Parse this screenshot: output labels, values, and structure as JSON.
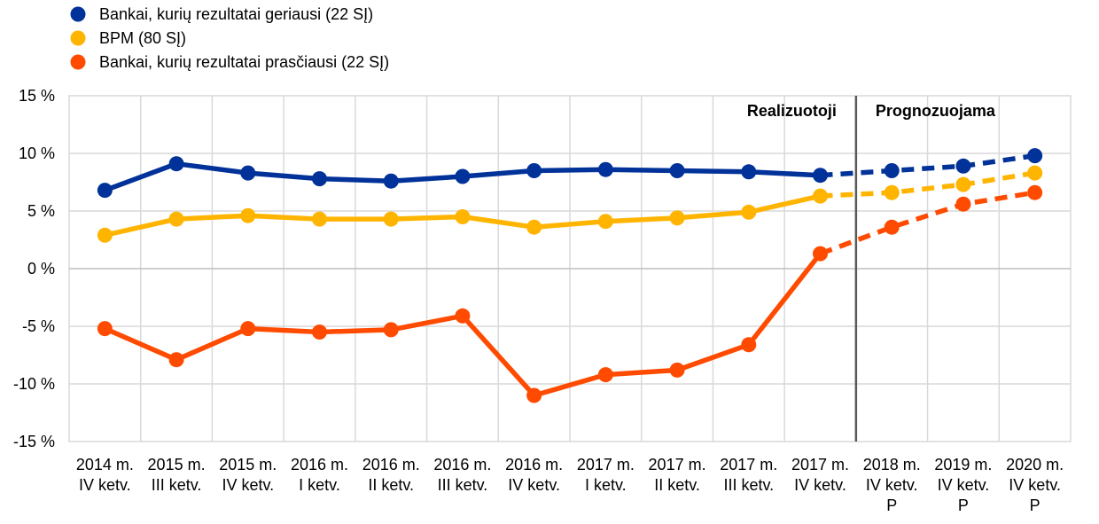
{
  "chart_data": {
    "type": "line",
    "categories": [
      [
        "2014 m.",
        "IV ketv."
      ],
      [
        "2015 m.",
        "III ketv."
      ],
      [
        "2015 m.",
        "IV ketv."
      ],
      [
        "2016 m.",
        "I ketv."
      ],
      [
        "2016 m.",
        "II ketv."
      ],
      [
        "2016 m.",
        "III ketv."
      ],
      [
        "2016 m.",
        "IV ketv."
      ],
      [
        "2017 m.",
        "I ketv."
      ],
      [
        "2017 m.",
        "II ketv."
      ],
      [
        "2017 m.",
        "III ketv."
      ],
      [
        "2017 m.",
        "IV ketv."
      ],
      [
        "2018 m.",
        "IV ketv.",
        "P"
      ],
      [
        "2019 m.",
        "IV ketv.",
        "P"
      ],
      [
        "2020 m.",
        "IV ketv.",
        "P"
      ]
    ],
    "series": [
      {
        "name": "Bankai, kurių rezultatai geriausi (22 SĮ)",
        "color": "#003299",
        "values": [
          6.8,
          9.1,
          8.3,
          7.8,
          7.6,
          8.0,
          8.5,
          8.6,
          8.5,
          8.4,
          8.1,
          8.5,
          8.9,
          9.8
        ]
      },
      {
        "name": "BPM (80 SĮ)",
        "color": "#FFB400",
        "values": [
          2.9,
          4.3,
          4.6,
          4.3,
          4.3,
          4.5,
          3.6,
          4.1,
          4.4,
          4.9,
          6.3,
          6.6,
          7.3,
          8.3
        ]
      },
      {
        "name": "Bankai, kurių rezultatai prasčiausi (22 SĮ)",
        "color": "#FF4B00",
        "values": [
          -5.2,
          -7.9,
          -5.2,
          -5.5,
          -5.3,
          -4.1,
          -11.0,
          -9.2,
          -8.8,
          -6.6,
          1.3,
          3.6,
          5.6,
          6.6
        ]
      }
    ],
    "realized_count": 11,
    "ylim": [
      -15,
      15
    ],
    "yticks": [
      15,
      10,
      5,
      0,
      -5,
      -10,
      -15
    ],
    "ytick_suffix": " %",
    "annotations": {
      "realized": "Realizuotoji",
      "forecast": "Prognozuojama"
    },
    "grid": true,
    "legend_position": "top-left"
  }
}
